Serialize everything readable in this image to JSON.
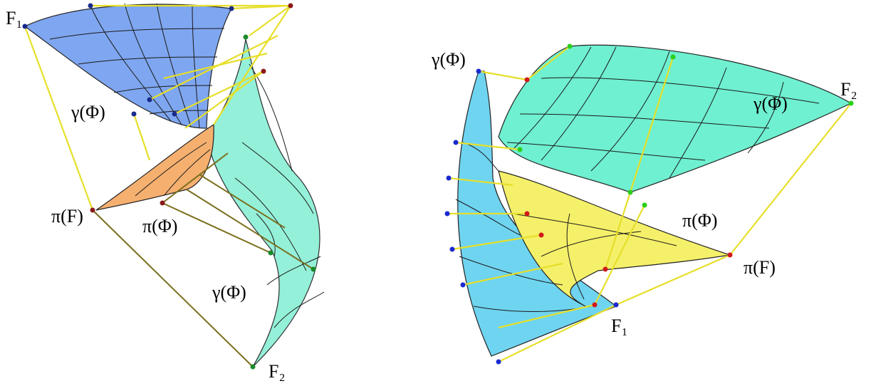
{
  "panels": [
    {
      "labels": [
        "F₁",
        "γ(Φ)",
        "π(F)",
        "π(Φ)",
        "γ(Φ)",
        "F₂"
      ]
    },
    {
      "labels": [
        "γ(Φ)",
        "F₂",
        "γ(Φ)",
        "π(Φ)",
        "π(F)",
        "F₁"
      ]
    }
  ]
}
